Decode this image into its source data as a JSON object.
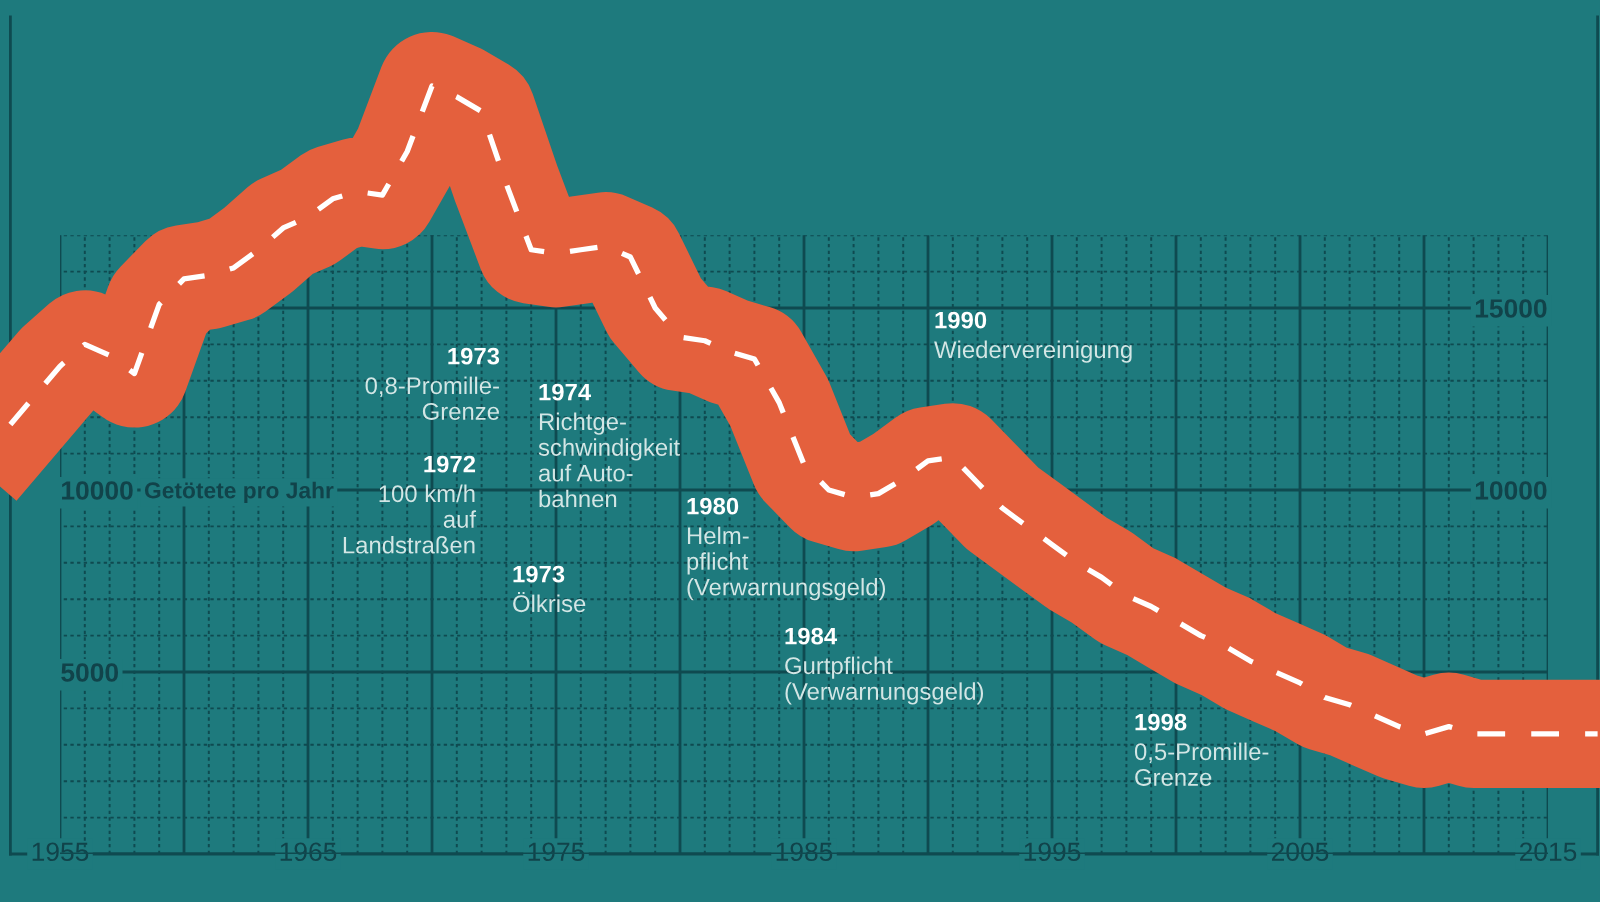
{
  "chart_data": {
    "type": "line",
    "ylabel": "Getötete pro Jahr",
    "x": [
      1953,
      1954,
      1955,
      1956,
      1957,
      1958,
      1959,
      1960,
      1961,
      1962,
      1963,
      1964,
      1965,
      1966,
      1967,
      1968,
      1969,
      1970,
      1971,
      1972,
      1973,
      1974,
      1975,
      1976,
      1977,
      1978,
      1979,
      1980,
      1981,
      1982,
      1983,
      1984,
      1985,
      1986,
      1987,
      1988,
      1989,
      1990,
      1991,
      1992,
      1993,
      1994,
      1995,
      1996,
      1997,
      1998,
      1999,
      2000,
      2001,
      2002,
      2003,
      2004,
      2005,
      2006,
      2007,
      2008,
      2009,
      2010,
      2011,
      2012,
      2013,
      2014,
      2015,
      2016,
      2017
    ],
    "values": [
      11800,
      12600,
      13400,
      14000,
      13700,
      13200,
      15100,
      15800,
      15900,
      16100,
      16600,
      17200,
      17500,
      18000,
      18200,
      18100,
      19300,
      21100,
      20800,
      20400,
      18400,
      16600,
      16500,
      16600,
      16700,
      16400,
      15000,
      14200,
      14100,
      13800,
      13600,
      12400,
      10700,
      10000,
      9800,
      9900,
      10300,
      10800,
      10900,
      10200,
      9500,
      9000,
      8500,
      8000,
      7600,
      7100,
      6800,
      6400,
      6000,
      5700,
      5300,
      5000,
      4700,
      4300,
      4100,
      3800,
      3500,
      3300,
      3500,
      3300,
      3300,
      3300,
      3300,
      3300,
      3300
    ],
    "color": "#e4603d",
    "xlim": [
      1953,
      2017
    ],
    "ylim": [
      0,
      23000
    ],
    "xticks": [
      1955,
      {
        "value": 1956,
        "label": null
      },
      {
        "value": 1957,
        "label": null
      },
      {
        "value": 1958,
        "label": null
      },
      {
        "value": 1959,
        "label": null
      },
      {
        "value": 1960,
        "label": null
      },
      {
        "value": 1961,
        "label": null
      },
      {
        "value": 1962,
        "label": null
      },
      {
        "value": 1963,
        "label": null
      },
      {
        "value": 1964,
        "label": null
      },
      1965,
      {
        "value": 1966,
        "label": null
      },
      {
        "value": 1967,
        "label": null
      },
      {
        "value": 1968,
        "label": null
      },
      {
        "value": 1969,
        "label": null
      },
      {
        "value": 1970,
        "label": null
      },
      {
        "value": 1971,
        "label": null
      },
      {
        "value": 1972,
        "label": null
      },
      {
        "value": 1973,
        "label": null
      },
      {
        "value": 1974,
        "label": null
      },
      1975,
      {
        "value": 1976,
        "label": null
      },
      {
        "value": 1977,
        "label": null
      },
      {
        "value": 1978,
        "label": null
      },
      {
        "value": 1979,
        "label": null
      },
      {
        "value": 1980,
        "label": null
      },
      {
        "value": 1981,
        "label": null
      },
      {
        "value": 1982,
        "label": null
      },
      {
        "value": 1983,
        "label": null
      },
      {
        "value": 1984,
        "label": null
      },
      1985,
      {
        "value": 1986,
        "label": null
      },
      {
        "value": 1987,
        "label": null
      },
      {
        "value": 1988,
        "label": null
      },
      {
        "value": 1989,
        "label": null
      },
      {
        "value": 1990,
        "label": null
      },
      {
        "value": 1991,
        "label": null
      },
      {
        "value": 1992,
        "label": null
      },
      {
        "value": 1993,
        "label": null
      },
      {
        "value": 1994,
        "label": null
      },
      1995,
      {
        "value": 1996,
        "label": null
      },
      {
        "value": 1997,
        "label": null
      },
      {
        "value": 1998,
        "label": null
      },
      {
        "value": 1999,
        "label": null
      },
      {
        "value": 2000,
        "label": null
      },
      {
        "value": 2001,
        "label": null
      },
      {
        "value": 2002,
        "label": null
      },
      {
        "value": 2003,
        "label": null
      },
      {
        "value": 2004,
        "label": null
      },
      2005,
      {
        "value": 2006,
        "label": null
      },
      {
        "value": 2007,
        "label": null
      },
      {
        "value": 2008,
        "label": null
      },
      {
        "value": 2009,
        "label": null
      },
      {
        "value": 2010,
        "label": null
      },
      {
        "value": 2011,
        "label": null
      },
      {
        "value": 2012,
        "label": null
      },
      {
        "value": 2013,
        "label": null
      },
      {
        "value": 2014,
        "label": null
      },
      2015
    ],
    "yticks": [
      {
        "value": 0,
        "label": null
      },
      {
        "value": 1000,
        "label": null
      },
      {
        "value": 2000,
        "label": null
      },
      {
        "value": 3000,
        "label": null
      },
      {
        "value": 4000,
        "label": null
      },
      5000,
      {
        "value": 6000,
        "label": null
      },
      {
        "value": 7000,
        "label": null
      },
      {
        "value": 8000,
        "label": null
      },
      {
        "value": 9000,
        "label": null
      },
      10000,
      {
        "value": 11000,
        "label": null
      },
      {
        "value": 12000,
        "label": null
      },
      {
        "value": 13000,
        "label": null
      },
      {
        "value": 14000,
        "label": null
      },
      {
        "value": 15000,
        "label": null
      },
      {
        "value": 16000,
        "label": null
      },
      {
        "value": 17000,
        "label": null
      }
    ],
    "y2lim": [
      0,
      23000
    ],
    "y2ticks": [
      10000,
      15000
    ],
    "grid": true,
    "annotations": [
      "1973",
      "0,8-Promille-\nGrenze",
      "1972",
      "100 km/h\nauf\nLandstraßen",
      "1973",
      "Ölkrise",
      "1974",
      "Richtge-\nschwindigkeit\nauf Auto-\nbahnen",
      "1980",
      "Helm-\npflicht\n(Verwarnungsgeld)",
      "1984",
      "Gurtpflicht\n(Verwarnungsgeld)",
      "1990",
      "Wiedervereinigung",
      "1998",
      "0,5-Promille-\nGrenze"
    ]
  }
}
